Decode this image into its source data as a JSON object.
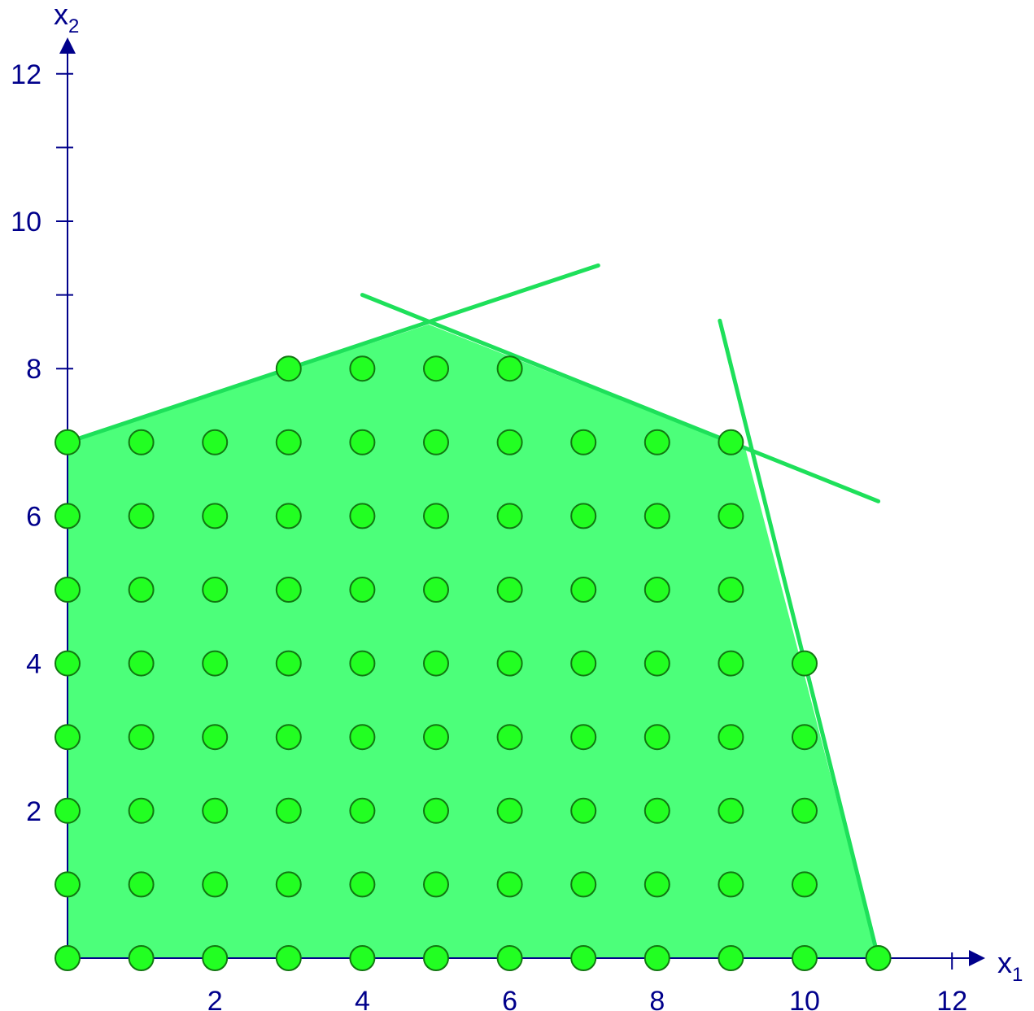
{
  "chart_data": {
    "type": "scatter",
    "title": "",
    "xlabel": "x",
    "xlabel_sub": "1",
    "ylabel": "x",
    "ylabel_sub": "2",
    "xlim": [
      0,
      12
    ],
    "ylim": [
      0,
      12
    ],
    "x_ticks": [
      1,
      2,
      3,
      4,
      5,
      6,
      7,
      8,
      9,
      10,
      11,
      12
    ],
    "y_ticks": [
      1,
      2,
      3,
      4,
      5,
      6,
      7,
      8,
      9,
      10,
      11,
      12
    ],
    "x_tick_labels": [
      {
        "value": 2,
        "label": "2"
      },
      {
        "value": 4,
        "label": "4"
      },
      {
        "value": 6,
        "label": "6"
      },
      {
        "value": 8,
        "label": "8"
      },
      {
        "value": 10,
        "label": "10"
      },
      {
        "value": 12,
        "label": "12"
      }
    ],
    "y_tick_labels": [
      {
        "value": 2,
        "label": "2"
      },
      {
        "value": 4,
        "label": "4"
      },
      {
        "value": 6,
        "label": "6"
      },
      {
        "value": 8,
        "label": "8"
      },
      {
        "value": 10,
        "label": "10"
      },
      {
        "value": 12,
        "label": "12"
      }
    ],
    "grid": false,
    "feasible_region": [
      [
        0,
        0
      ],
      [
        0,
        7
      ],
      [
        4.9,
        8.6
      ],
      [
        9.2,
        6.9
      ],
      [
        11,
        0
      ]
    ],
    "constraint_lines": [
      [
        [
          0,
          7
        ],
        [
          7.2,
          9.4
        ]
      ],
      [
        [
          4,
          9.0
        ],
        [
          11,
          6.2
        ]
      ],
      [
        [
          8.85,
          8.65
        ],
        [
          11,
          0
        ]
      ]
    ],
    "points_per_row": [
      {
        "y": 0,
        "x_max": 11
      },
      {
        "y": 1,
        "x_max": 10
      },
      {
        "y": 2,
        "x_max": 10
      },
      {
        "y": 3,
        "x_max": 10
      },
      {
        "y": 4,
        "x_max": 10
      },
      {
        "y": 5,
        "x_max": 9
      },
      {
        "y": 6,
        "x_max": 9
      },
      {
        "y": 7,
        "x_max": 9
      },
      {
        "y": 8,
        "x_min": 3,
        "x_max": 6
      }
    ],
    "colors": {
      "axis": "#00008b",
      "region_fill": "#4cff7a",
      "constraint_line": "#1ee05a",
      "point_fill": "#22ff22",
      "point_stroke": "#117711"
    }
  }
}
